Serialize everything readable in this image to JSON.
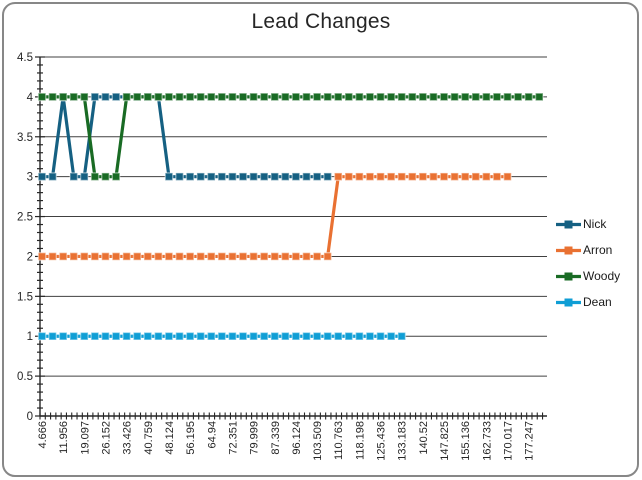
{
  "chart_data": {
    "type": "line",
    "title": "Lead Changes",
    "xlabel": "",
    "ylabel": "",
    "ylim": [
      0,
      4.5
    ],
    "ytick_step": 0.5,
    "y_minor_step": 0.1,
    "grid": "horizontal",
    "legend_position": "right",
    "marker": "square",
    "n_points": 48,
    "label_every_n_points": 2,
    "x_tick_labels": [
      "4.666",
      "11.956",
      "19.097",
      "26.152",
      "33.426",
      "40.759",
      "48.124",
      "56.195",
      "64.94",
      "72.351",
      "79.999",
      "87.339",
      "96.124",
      "103.509",
      "110.763",
      "118.198",
      "125.436",
      "133.183",
      "140.52",
      "147.825",
      "155.136",
      "162.733",
      "170.017",
      "177.247"
    ],
    "series": [
      {
        "name": "Nick",
        "color": "#156082",
        "values": [
          3,
          3,
          4,
          3,
          3,
          4,
          4,
          4,
          4,
          4,
          4,
          4,
          3,
          3,
          3,
          3,
          3,
          3,
          3,
          3,
          3,
          3,
          3,
          3,
          3,
          3,
          3,
          3,
          null,
          null,
          null,
          null,
          null,
          null,
          null,
          null,
          null,
          null,
          null,
          null,
          null,
          null,
          null,
          null,
          null,
          null,
          null,
          null
        ]
      },
      {
        "name": "Arron",
        "color": "#E97132",
        "values": [
          2,
          2,
          2,
          2,
          2,
          2,
          2,
          2,
          2,
          2,
          2,
          2,
          2,
          2,
          2,
          2,
          2,
          2,
          2,
          2,
          2,
          2,
          2,
          2,
          2,
          2,
          2,
          2,
          3,
          3,
          3,
          3,
          3,
          3,
          3,
          3,
          3,
          3,
          3,
          3,
          3,
          3,
          3,
          3,
          3,
          null,
          null,
          null
        ]
      },
      {
        "name": "Woody",
        "color": "#196B24",
        "values": [
          4,
          4,
          4,
          4,
          4,
          3,
          3,
          3,
          4,
          4,
          4,
          4,
          4,
          4,
          4,
          4,
          4,
          4,
          4,
          4,
          4,
          4,
          4,
          4,
          4,
          4,
          4,
          4,
          4,
          4,
          4,
          4,
          4,
          4,
          4,
          4,
          4,
          4,
          4,
          4,
          4,
          4,
          4,
          4,
          4,
          4,
          4,
          4
        ]
      },
      {
        "name": "Dean",
        "color": "#0F9ED5",
        "values": [
          1,
          1,
          1,
          1,
          1,
          1,
          1,
          1,
          1,
          1,
          1,
          1,
          1,
          1,
          1,
          1,
          1,
          1,
          1,
          1,
          1,
          1,
          1,
          1,
          1,
          1,
          1,
          1,
          1,
          1,
          1,
          1,
          1,
          1,
          1,
          null,
          null,
          null,
          null,
          null,
          null,
          null,
          null,
          null,
          null,
          null,
          null,
          null
        ]
      }
    ],
    "colors": {
      "axis": "#262626",
      "gridline": "#404040",
      "tick_label": "#262626",
      "frame_border": "#878787"
    }
  }
}
